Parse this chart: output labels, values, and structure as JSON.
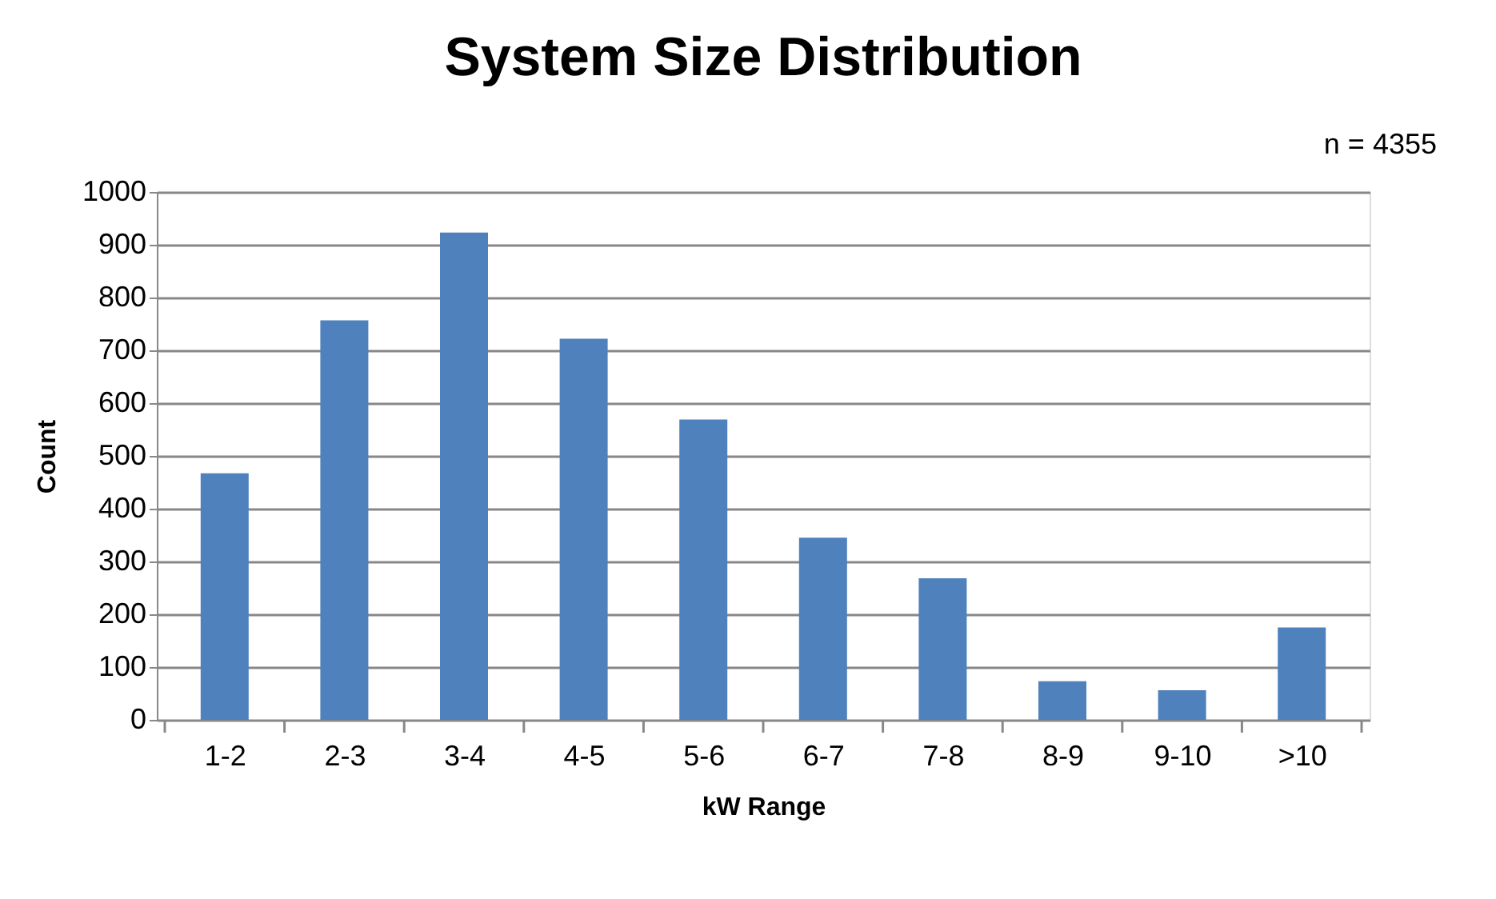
{
  "chart_data": {
    "type": "bar",
    "title": "System Size Distribution",
    "xlabel": "kW Range",
    "ylabel": "Count",
    "categories": [
      "1-2",
      "2-3",
      "3-4",
      "4-5",
      "5-6",
      "6-7",
      "7-8",
      "8-9",
      "9-10",
      ">10"
    ],
    "values": [
      467,
      757,
      923,
      722,
      569,
      345,
      268,
      73,
      56,
      175
    ],
    "color": "#4f81bd",
    "ylim": [
      0,
      1000
    ],
    "yticks": [
      0,
      100,
      200,
      300,
      400,
      500,
      600,
      700,
      800,
      900,
      1000
    ],
    "grid": "y",
    "annotations": [
      "n = 4355"
    ]
  }
}
